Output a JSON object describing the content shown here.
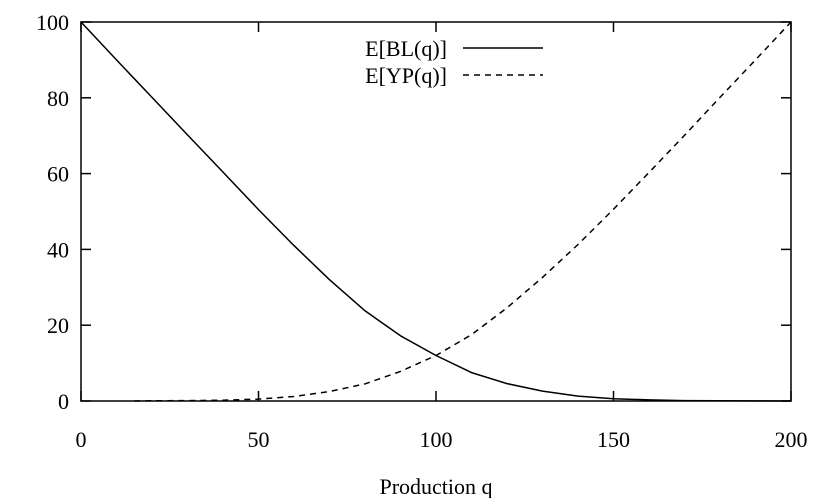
{
  "chart_data": {
    "type": "line",
    "title": "",
    "xlabel": "Production q",
    "ylabel": "",
    "xlim": [
      0,
      200
    ],
    "ylim": [
      0,
      100
    ],
    "xticks": [
      0,
      50,
      100,
      150,
      200
    ],
    "yticks": [
      0,
      20,
      40,
      60,
      80,
      100
    ],
    "grid": false,
    "legend_position": "top-center",
    "series": [
      {
        "name": "E[BL(q)]",
        "style": "solid",
        "color": "#000000",
        "x": [
          0,
          10,
          20,
          30,
          40,
          50,
          60,
          70,
          80,
          90,
          100,
          110,
          120,
          130,
          140,
          150,
          160,
          170,
          180,
          190,
          200
        ],
        "y": [
          100,
          90.0,
          80.1,
          70.2,
          60.4,
          50.5,
          41.0,
          32.0,
          23.8,
          17.2,
          12.0,
          7.5,
          4.6,
          2.6,
          1.3,
          0.6,
          0.3,
          0.1,
          0.05,
          0.02,
          0
        ]
      },
      {
        "name": "E[YP(q)]",
        "style": "dashed",
        "color": "#000000",
        "x": [
          15,
          20,
          30,
          40,
          50,
          60,
          70,
          80,
          90,
          100,
          110,
          120,
          130,
          140,
          150,
          160,
          170,
          180,
          190,
          200
        ],
        "y": [
          0,
          0.05,
          0.1,
          0.2,
          0.5,
          1.2,
          2.5,
          4.5,
          7.8,
          12.0,
          17.5,
          24.6,
          32.6,
          41.3,
          50.6,
          60.3,
          70.1,
          80.1,
          90.0,
          100
        ]
      }
    ]
  }
}
